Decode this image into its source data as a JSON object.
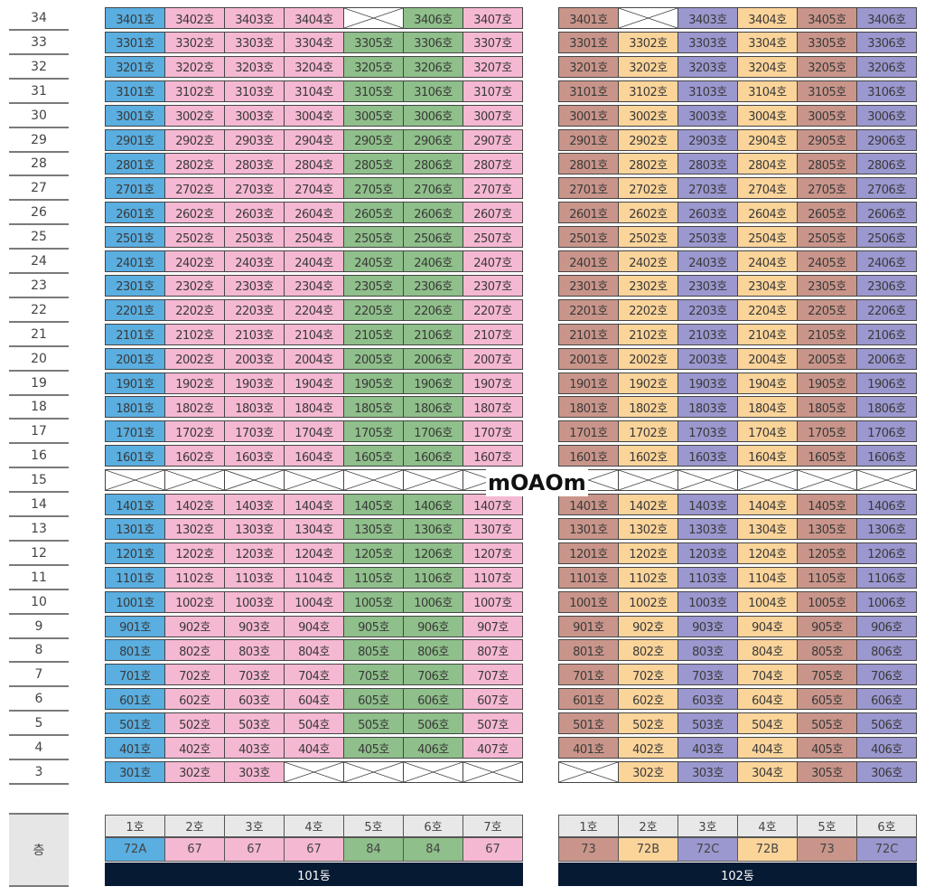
{
  "floors": [
    "34",
    "33",
    "32",
    "31",
    "30",
    "29",
    "28",
    "27",
    "26",
    "25",
    "24",
    "23",
    "22",
    "21",
    "20",
    "19",
    "18",
    "17",
    "16",
    "15",
    "14",
    "13",
    "12",
    "11",
    "10",
    "9",
    "8",
    "7",
    "6",
    "5",
    "4",
    "3"
  ],
  "floor_label": "층",
  "unit_suffix": "호",
  "colors": {
    "blue": "#5aaee0",
    "pink": "#f5b8d2",
    "green": "#8fbf8a",
    "brown": "#c9958a",
    "yellow": "#fbd49a",
    "purple": "#9b97cf",
    "header_gray": "#e8e8e8",
    "building_navy": "#071a33"
  },
  "buildings": [
    {
      "name": "101동",
      "line_labels": [
        "1호",
        "2호",
        "3호",
        "4호",
        "5호",
        "6호",
        "7호"
      ],
      "types": [
        "72A",
        "67",
        "67",
        "67",
        "84",
        "84",
        "67"
      ],
      "line_colors": [
        "blue",
        "pink",
        "pink",
        "pink",
        "green",
        "green",
        "pink"
      ],
      "missing": [
        "3405",
        "3305x",
        "1501",
        "1502",
        "1503",
        "1504",
        "1505",
        "1506",
        "1507",
        "304",
        "305",
        "306",
        "307"
      ]
    },
    {
      "name": "102동",
      "line_labels": [
        "1호",
        "2호",
        "3호",
        "4호",
        "5호",
        "6호"
      ],
      "types": [
        "73",
        "72B",
        "72C",
        "72B",
        "73",
        "72C"
      ],
      "line_colors": [
        "brown",
        "yellow",
        "purple",
        "yellow",
        "brown",
        "purple"
      ],
      "missing": [
        "3402",
        "1501",
        "1502",
        "1503",
        "1504",
        "1505",
        "1506",
        "301"
      ]
    }
  ],
  "watermark": "mOAOm"
}
